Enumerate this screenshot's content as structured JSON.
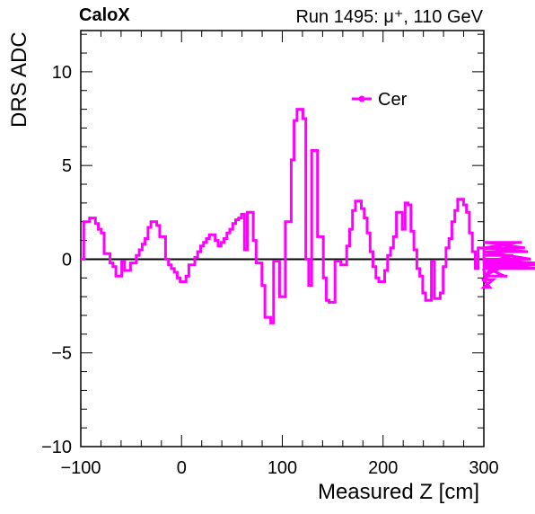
{
  "header": {
    "experiment": "CaloX",
    "run_info": "Run 1495:   μ⁺, 110 GeV"
  },
  "chart_data": {
    "type": "line",
    "style": "step-histogram",
    "xlabel": "Measured Z [cm]",
    "ylabel": "DRS ADC",
    "xlim": [
      -100,
      300
    ],
    "ylim": [
      -10,
      12.2
    ],
    "x_ticks": [
      -100,
      0,
      100,
      200,
      300
    ],
    "x_tick_labels": [
      "−100",
      "0",
      "100",
      "200",
      "300"
    ],
    "y_ticks": [
      -10,
      -5,
      0,
      5,
      10
    ],
    "y_tick_labels": [
      "−10",
      "−5",
      "0",
      "5",
      "10"
    ],
    "zero_line": true,
    "grid": false,
    "legend_placement": "top-right",
    "series": [
      {
        "name": "Cer",
        "color": "#ff00ff",
        "bin_width": 2.9,
        "x_start": -100,
        "values": [
          0.0,
          2.0,
          2.0,
          2.2,
          2.2,
          1.9,
          1.6,
          1.4,
          0.3,
          0.3,
          -0.2,
          -0.4,
          -0.9,
          -0.9,
          -0.1,
          -0.6,
          -0.6,
          -0.2,
          -0.2,
          0.2,
          0.5,
          0.8,
          1.1,
          1.7,
          2.0,
          2.0,
          1.8,
          1.2,
          1.2,
          0.0,
          -0.3,
          -0.5,
          -0.7,
          -1.0,
          -1.2,
          -1.2,
          -0.9,
          -0.3,
          -0.3,
          0.1,
          0.4,
          0.7,
          0.9,
          1.1,
          1.3,
          1.3,
          1.0,
          0.7,
          0.9,
          1.1,
          1.4,
          1.6,
          1.9,
          2.1,
          2.2,
          2.4,
          0.5,
          2.5,
          2.5,
          1.0,
          -0.2,
          -0.2,
          -1.4,
          -3.1,
          -3.1,
          -3.4,
          -0.1,
          -0.1,
          -2.0,
          -2.0,
          2.0,
          2.0,
          5.3,
          7.4,
          8.0,
          8.0,
          7.5,
          0.0,
          -1.4,
          5.8,
          5.8,
          1.2,
          1.2,
          -1.0,
          -2.2,
          -2.3,
          -2.3,
          -0.1,
          -0.1,
          -0.3,
          -0.3,
          0.7,
          1.6,
          2.6,
          3.1,
          3.1,
          2.7,
          2.2,
          1.4,
          0.4,
          -0.4,
          -1.0,
          -1.2,
          -1.2,
          -0.6,
          0.2,
          0.6,
          1.2,
          2.5,
          2.5,
          1.6,
          3.0,
          2.9,
          1.5,
          0.5,
          -0.5,
          -0.9,
          -1.8,
          -2.2,
          -2.2,
          -0.1,
          -2.1,
          -2.1,
          -1.8,
          -0.4,
          0.6,
          1.1,
          2.0,
          2.6,
          3.2,
          3.2,
          2.9,
          2.5,
          1.4,
          0.4,
          -0.5,
          0.6,
          0.6,
          -0.6,
          -1.1,
          -1.5,
          -1.1,
          0.0,
          -0.4,
          -0.4,
          -0.9,
          -0.9,
          -0.2,
          0.2,
          0.6,
          0.9,
          0.9,
          0.6,
          0.4,
          0.0,
          -0.2,
          -0.2,
          -0.3,
          -0.5
        ]
      }
    ]
  }
}
